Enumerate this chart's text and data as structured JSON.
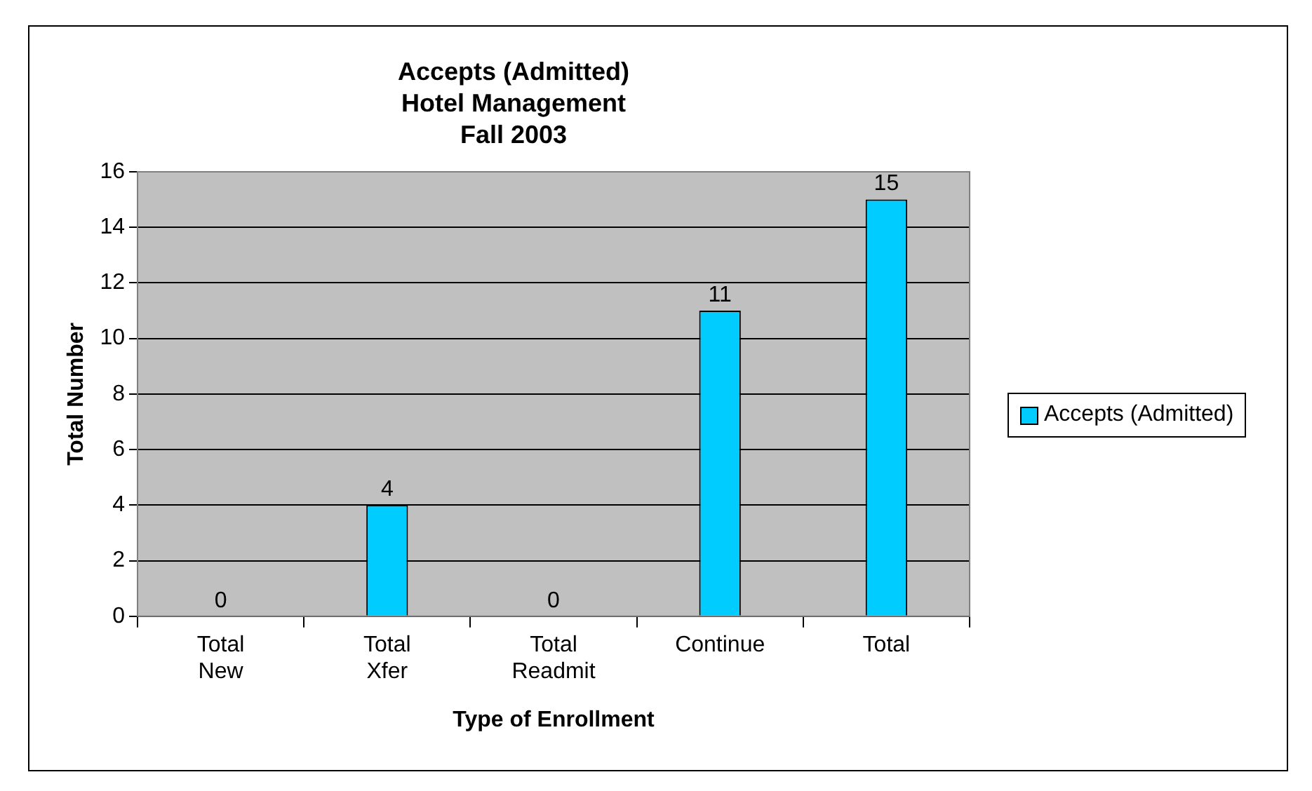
{
  "chart_data": {
    "type": "bar",
    "title": "Accepts (Admitted)\nHotel Management\nFall 2003",
    "xlabel": "Type of Enrollment",
    "ylabel": "Total Number",
    "categories": [
      "Total New",
      "Total Xfer",
      "Total Readmit",
      "Continue",
      "Total"
    ],
    "series": [
      {
        "name": "Accepts (Admitted)",
        "color": "#00ccff",
        "values": [
          0,
          4,
          0,
          11,
          15
        ]
      }
    ],
    "ylim": [
      0,
      16
    ],
    "yticks": [
      0,
      2,
      4,
      6,
      8,
      10,
      12,
      14,
      16
    ],
    "grid": "y",
    "legend": "right",
    "data_labels": true
  }
}
